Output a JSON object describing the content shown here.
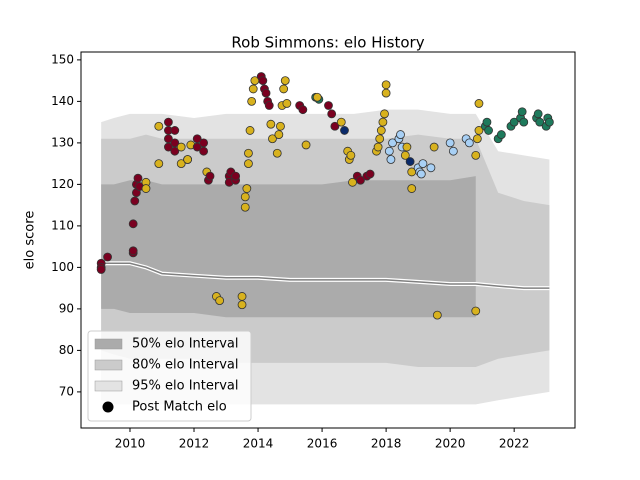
{
  "chart_data": {
    "type": "interval-scatter",
    "title": "Rob Simmons: elo History",
    "ylabel": "elo score",
    "xlim": [
      2008.47,
      2023.9
    ],
    "ylim": [
      61.3,
      151.9
    ],
    "xticks": [
      2010,
      2012,
      2014,
      2016,
      2018,
      2020,
      2022
    ],
    "yticks": [
      70,
      80,
      90,
      100,
      110,
      120,
      130,
      140,
      150
    ],
    "legend": "lower left",
    "band_x": [
      2009.1,
      2009.5,
      2010,
      2010.5,
      2011,
      2012,
      2013,
      2014,
      2015,
      2016,
      2017,
      2018,
      2019,
      2020,
      2020.8,
      2021.5,
      2022.3,
      2023.1
    ],
    "bands": [
      {
        "name": "95% elo Interval",
        "color": "#e3e3e3",
        "lower": [
          68,
          67,
          67,
          67,
          67,
          67,
          67,
          67,
          67,
          67,
          67,
          67,
          67,
          67,
          67,
          68,
          69,
          70
        ],
        "upper": [
          135,
          136,
          137,
          137,
          137,
          136,
          137,
          137,
          137,
          137,
          137,
          138,
          138,
          137,
          137,
          128,
          127,
          126
        ]
      },
      {
        "name": "80% elo Interval",
        "color": "#cbcbcb",
        "lower": [
          80,
          79,
          78,
          78,
          78,
          78,
          77,
          77,
          77,
          77,
          77,
          77,
          76,
          76,
          76,
          78,
          79,
          80
        ],
        "upper": [
          131,
          131,
          131,
          132,
          131,
          131,
          131,
          131,
          131,
          131,
          131,
          131,
          132,
          131,
          131,
          118,
          116,
          115
        ]
      },
      {
        "name": "50% elo Interval",
        "color": "#ababab",
        "lower": [
          90,
          90,
          89,
          89,
          89,
          89,
          88,
          88,
          88,
          88,
          88,
          88,
          88,
          88,
          88,
          null,
          null,
          null
        ],
        "upper": [
          120,
          120,
          121,
          121,
          120,
          120,
          120,
          120,
          120,
          120,
          121,
          121,
          121,
          121,
          122,
          null,
          null,
          null
        ]
      }
    ],
    "median": {
      "color": "#808080",
      "values": [
        101,
        101,
        101,
        100,
        98.5,
        98,
        97.5,
        97.5,
        97,
        97,
        97,
        97,
        96.5,
        96,
        96,
        95.5,
        95,
        95
      ]
    },
    "scatter": {
      "name": "Post Match elo",
      "color": "#000000",
      "x": [
        2009.1,
        2009.1,
        2009.1,
        2009.3,
        2010.1,
        2010.1,
        2010.1,
        2010.15,
        2010.2,
        2010.2,
        2010.25,
        2010.3,
        2010.5,
        2010.5,
        2010.9,
        2010.9,
        2011.2,
        2011.2,
        2011.2,
        2011.2,
        2011.4,
        2011.4,
        2011.4,
        2011.6,
        2011.6,
        2011.8,
        2011.8,
        2011.9,
        2012.1,
        2012.1,
        2012.3,
        2012.3,
        2012.4,
        2012.45,
        2012.5,
        2012.7,
        2012.8,
        2013.1,
        2013.1,
        2013.15,
        2013.3,
        2013.3,
        2013.6,
        2013.6,
        2013.65,
        2013.7,
        2013.7,
        2013.75,
        2013.5,
        2013.5,
        2013.8,
        2013.85,
        2013.9,
        2014.1,
        2014.15,
        2014.2,
        2014.25,
        2014.3,
        2014.35,
        2014.4,
        2014.45,
        2014.6,
        2014.65,
        2014.7,
        2014.75,
        2014.8,
        2014.85,
        2014.9,
        2015.3,
        2015.4,
        2015.5,
        2015.8,
        2015.9,
        2015.85,
        2016.2,
        2016.3,
        2016.4,
        2016.6,
        2016.7,
        2016.8,
        2016.85,
        2016.9,
        2016.95,
        2017.1,
        2017.2,
        2017.4,
        2017.5,
        2017.7,
        2017.75,
        2017.8,
        2017.85,
        2017.9,
        2017.95,
        2018.0,
        2018.0,
        2018.1,
        2018.15,
        2018.2,
        2018.4,
        2018.45,
        2018.5,
        2018.6,
        2018.65,
        2018.75,
        2018.8,
        2018.8,
        2019.0,
        2019.05,
        2019.1,
        2019.15,
        2019.4,
        2019.5,
        2019.6,
        2020.0,
        2020.1,
        2020.5,
        2020.6,
        2020.8,
        2020.85,
        2020.9,
        2020.9,
        2020.8,
        2021.1,
        2021.15,
        2021.2,
        2021.5,
        2021.6,
        2021.9,
        2022.0,
        2022.2,
        2022.25,
        2022.3,
        2022.7,
        2022.75,
        2022.8,
        2023.0,
        2023.05,
        2023.1
      ],
      "values": [
        101,
        100,
        99.5,
        102.5,
        103.5,
        104,
        110.5,
        116,
        118,
        120,
        121.5,
        119.5,
        120.5,
        119,
        125,
        134,
        135,
        133,
        131,
        129,
        133,
        130,
        128,
        129,
        125,
        126,
        126,
        129.5,
        131,
        129,
        128,
        130,
        123,
        121,
        122,
        93,
        92,
        122,
        120.5,
        123,
        121,
        122,
        114.5,
        117,
        119,
        125,
        127.5,
        133,
        93,
        91,
        140,
        143,
        145,
        146,
        145,
        143,
        142,
        140,
        139,
        134.5,
        131,
        127.5,
        132,
        134,
        139,
        143,
        145,
        139.5,
        139,
        138,
        129.5,
        141,
        140.5,
        141,
        139,
        137,
        134,
        135,
        133,
        128,
        126,
        127,
        120.5,
        122,
        121,
        122,
        122.5,
        128,
        129,
        131,
        133,
        135,
        137,
        142,
        144,
        128,
        126,
        130,
        131,
        132,
        129,
        127,
        129,
        125.5,
        123,
        119,
        124,
        123,
        122.5,
        125,
        124,
        129,
        88.5,
        130,
        128,
        131,
        130,
        127,
        131,
        133,
        139.5,
        89.5,
        134,
        135,
        133,
        131,
        132,
        134,
        135,
        136,
        137.5,
        135,
        136,
        137,
        135,
        134,
        136,
        135
      ],
      "colors": [
        "#7a0020",
        "#7a0020",
        "#7a0020",
        "#7a0020",
        "#7a0020",
        "#7a0020",
        "#7a0020",
        "#7a0020",
        "#7a0020",
        "#7a0020",
        "#7a0020",
        "#7a0020",
        "#d8b21e",
        "#d8b21e",
        "#d8b21e",
        "#d8b21e",
        "#7a0020",
        "#7a0020",
        "#7a0020",
        "#7a0020",
        "#7a0020",
        "#7a0020",
        "#7a0020",
        "#d8b21e",
        "#d8b21e",
        "#1e7a5c",
        "#d8b21e",
        "#d8b21e",
        "#7a0020",
        "#7a0020",
        "#7a0020",
        "#7a0020",
        "#d8b21e",
        "#7a0020",
        "#7a0020",
        "#d8b21e",
        "#d8b21e",
        "#7a0020",
        "#7a0020",
        "#7a0020",
        "#7a0020",
        "#7a0020",
        "#d8b21e",
        "#d8b21e",
        "#d8b21e",
        "#d8b21e",
        "#d8b21e",
        "#d8b21e",
        "#d8b21e",
        "#d8b21e",
        "#d8b21e",
        "#d8b21e",
        "#d8b21e",
        "#7a0020",
        "#7a0020",
        "#7a0020",
        "#7a0020",
        "#7a0020",
        "#7a0020",
        "#d8b21e",
        "#d8b21e",
        "#d8b21e",
        "#d8b21e",
        "#d8b21e",
        "#d8b21e",
        "#d8b21e",
        "#d8b21e",
        "#d8b21e",
        "#7a0020",
        "#7a0020",
        "#d8b21e",
        "#1e7a5c",
        "#1e7a5c",
        "#d8b21e",
        "#7a0020",
        "#7a0020",
        "#7a0020",
        "#d8b21e",
        "#0a2a6a",
        "#d8b21e",
        "#d8b21e",
        "#d8b21e",
        "#d8b21e",
        "#7a0020",
        "#7a0020",
        "#7a0020",
        "#7a0020",
        "#d8b21e",
        "#d8b21e",
        "#d8b21e",
        "#d8b21e",
        "#d8b21e",
        "#d8b21e",
        "#d8b21e",
        "#d8b21e",
        "#a8d0f5",
        "#a8d0f5",
        "#a8d0f5",
        "#a8d0f5",
        "#a8d0f5",
        "#a8d0f5",
        "#d8b21e",
        "#d8b21e",
        "#0a2a6a",
        "#d8b21e",
        "#d8b21e",
        "#a8d0f5",
        "#a8d0f5",
        "#a8d0f5",
        "#a8d0f5",
        "#a8d0f5",
        "#d8b21e",
        "#d8b21e",
        "#a8d0f5",
        "#a8d0f5",
        "#a8d0f5",
        "#a8d0f5",
        "#d8b21e",
        "#d8b21e",
        "#d8b21e",
        "#d8b21e",
        "#d8b21e",
        "#1e7a5c",
        "#1e7a5c",
        "#1e7a5c",
        "#1e7a5c",
        "#1e7a5c",
        "#1e7a5c",
        "#1e7a5c",
        "#1e7a5c",
        "#1e7a5c",
        "#1e7a5c",
        "#1e7a5c",
        "#1e7a5c",
        "#1e7a5c",
        "#1e7a5c",
        "#1e7a5c",
        "#1e7a5c"
      ]
    }
  }
}
